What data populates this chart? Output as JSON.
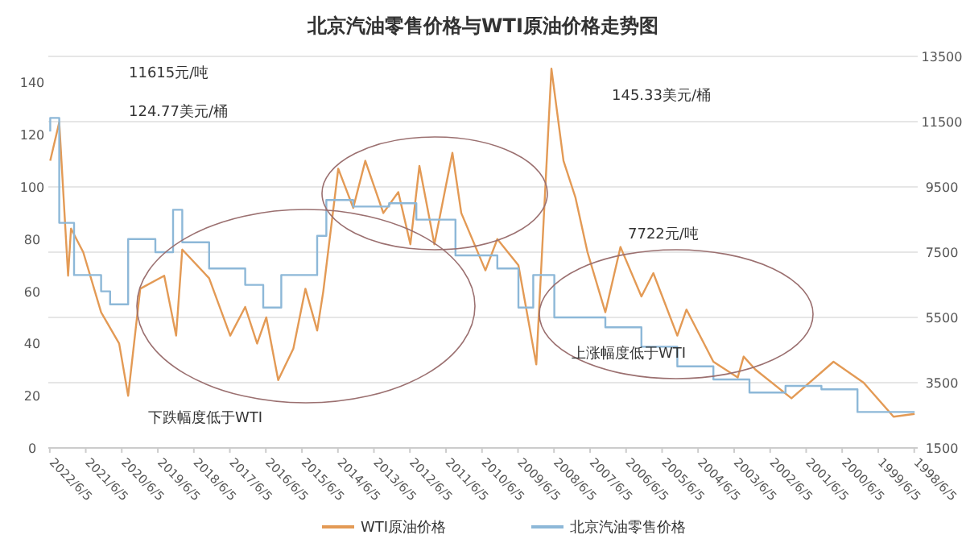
{
  "chart_data": {
    "type": "line",
    "title": "北京汽油零售价格与WTI原油价格走势图",
    "xlim": [
      "2022-06-20",
      "1998-05-01"
    ],
    "xticks": [
      {
        "value": "2022-06-05",
        "label": "2022/6/5"
      },
      {
        "value": "2021-06-05",
        "label": "2021/6/5"
      },
      {
        "value": "2020-06-05",
        "label": "2020/6/5"
      },
      {
        "value": "2019-06-05",
        "label": "2019/6/5"
      },
      {
        "value": "2018-06-05",
        "label": "2018/6/5"
      },
      {
        "value": "2017-06-05",
        "label": "2017/6/5"
      },
      {
        "value": "2016-06-05",
        "label": "2016/6/5"
      },
      {
        "value": "2015-06-05",
        "label": "2015/6/5"
      },
      {
        "value": "2014-06-05",
        "label": "2014/6/5"
      },
      {
        "value": "2013-06-05",
        "label": "2013/6/5"
      },
      {
        "value": "2012-06-05",
        "label": "2012/6/5"
      },
      {
        "value": "2011-06-05",
        "label": "2011/6/5"
      },
      {
        "value": "2010-06-05",
        "label": "2010/6/5"
      },
      {
        "value": "2009-06-05",
        "label": "2009/6/5"
      },
      {
        "value": "2008-06-05",
        "label": "2008/6/5"
      },
      {
        "value": "2007-06-05",
        "label": "2007/6/5"
      },
      {
        "value": "2006-06-05",
        "label": "2006/6/5"
      },
      {
        "value": "2005-06-05",
        "label": "2005/6/5"
      },
      {
        "value": "2004-06-05",
        "label": "2004/6/5"
      },
      {
        "value": "2003-06-05",
        "label": "2003/6/5"
      },
      {
        "value": "2002-06-05",
        "label": "2002/6/5"
      },
      {
        "value": "2001-06-05",
        "label": "2001/6/5"
      },
      {
        "value": "2000-06-05",
        "label": "2000/6/5"
      },
      {
        "value": "1999-06-05",
        "label": "1999/6/5"
      },
      {
        "value": "1998-06-05",
        "label": "1998/6/5"
      }
    ],
    "ylim": [
      0,
      150
    ],
    "yticks": [
      0,
      20,
      40,
      60,
      80,
      100,
      120,
      140
    ],
    "y2lim": [
      1500,
      13500
    ],
    "y2ticks": [
      1500,
      3500,
      5500,
      7500,
      9500,
      11500,
      13500
    ],
    "grid": "y2",
    "legend": "bottom",
    "series": [
      {
        "name": "WTI原油价格",
        "color": "#e39a55",
        "type": "line",
        "axis": "y",
        "x": [
          "1998-06",
          "1999-01",
          "1999-11",
          "2000-09",
          "2001-11",
          "2002-11",
          "2003-03",
          "2003-05",
          "2004-01",
          "2004-10",
          "2005-01",
          "2005-09",
          "2006-01",
          "2006-08",
          "2007-01",
          "2007-07",
          "2007-11",
          "2008-03",
          "2008-07",
          "2008-11",
          "2008-12",
          "2009-06",
          "2010-01",
          "2010-05",
          "2011-01",
          "2011-04",
          "2011-10",
          "2012-03",
          "2012-06",
          "2012-10",
          "2013-03",
          "2013-09",
          "2014-01",
          "2014-06",
          "2014-11",
          "2015-01",
          "2015-05",
          "2015-09",
          "2016-02",
          "2016-06",
          "2016-09",
          "2017-01",
          "2017-06",
          "2018-01",
          "2018-10",
          "2018-12",
          "2019-04",
          "2019-12",
          "2020-04",
          "2020-07",
          "2021-01",
          "2021-07",
          "2021-11",
          "2021-12",
          "2022-03",
          "2022-06"
        ],
        "values": [
          13,
          12,
          25,
          33,
          19,
          30,
          35,
          27,
          33,
          53,
          43,
          67,
          58,
          77,
          52,
          75,
          96,
          110,
          145.33,
          55,
          32,
          70,
          80,
          68,
          90,
          113,
          78,
          108,
          78,
          98,
          90,
          110,
          92,
          107,
          60,
          45,
          61,
          38,
          26,
          50,
          40,
          54,
          43,
          65,
          76,
          43,
          66,
          61,
          20,
          40,
          52,
          75,
          84,
          66,
          124.77,
          110
        ]
      },
      {
        "name": "北京汽油零售价格",
        "color": "#8db8d8",
        "type": "step",
        "axis": "y2",
        "x": [
          "1998-06",
          "2000-01",
          "2001-01",
          "2002-01",
          "2003-01",
          "2004-01",
          "2005-01",
          "2006-01",
          "2007-01",
          "2008-06",
          "2009-01",
          "2009-06",
          "2010-01",
          "2011-03",
          "2012-04",
          "2013-01",
          "2014-01",
          "2014-10",
          "2015-01",
          "2016-01",
          "2016-07",
          "2017-01",
          "2018-01",
          "2018-10",
          "2019-01",
          "2019-07",
          "2020-04",
          "2020-10",
          "2021-01",
          "2021-10",
          "2022-03",
          "2022-06"
        ],
        "values": [
          2600,
          3300,
          3400,
          3200,
          3600,
          4000,
          4600,
          5200,
          5500,
          6800,
          5800,
          7000,
          7400,
          8500,
          9000,
          8900,
          9100,
          8000,
          6800,
          5800,
          6500,
          7000,
          7800,
          8800,
          7500,
          7900,
          5900,
          6300,
          6800,
          8400,
          11615,
          11200
        ]
      }
    ],
    "annotations": [
      "11615元/吨",
      "124.77美元/桶",
      "145.33美元/桶",
      "7722元/吨",
      "下跌幅度低于WTI",
      "上涨幅度低于WTI"
    ]
  }
}
